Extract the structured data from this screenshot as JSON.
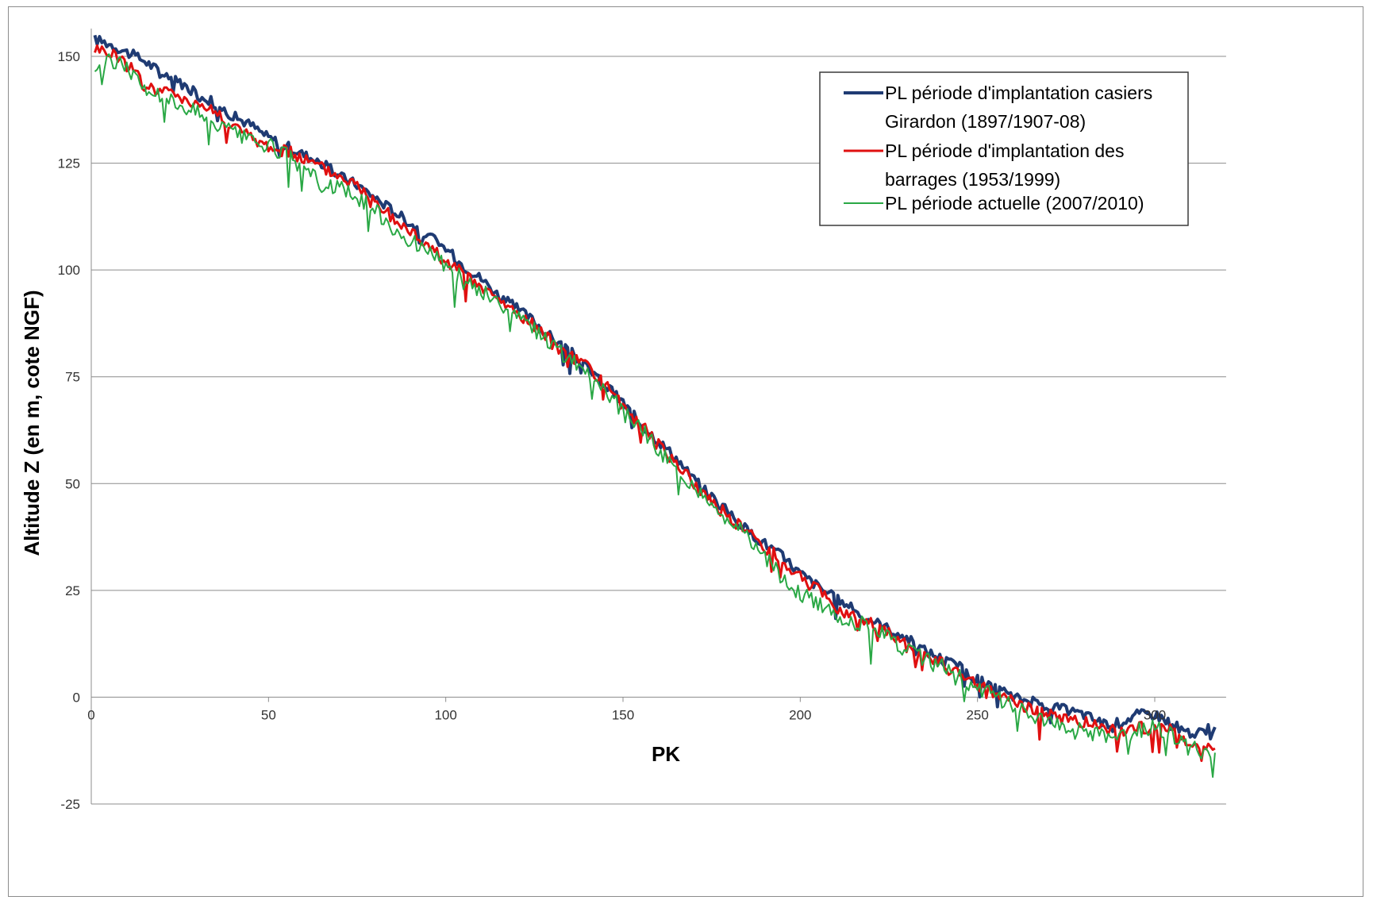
{
  "chart_data": {
    "type": "line",
    "title": "",
    "xlabel": "PK",
    "ylabel": "Altitude Z (en m, cote NGF)",
    "xlim": [
      0,
      317
    ],
    "ylim": [
      -25,
      155
    ],
    "x_ticks": [
      0,
      50,
      100,
      150,
      200,
      250,
      300
    ],
    "y_ticks": [
      150,
      125,
      100,
      75,
      50,
      25,
      0,
      -25
    ],
    "grid": "horizontal",
    "legend_position": "top-right",
    "series": [
      {
        "name": "PL période d'implantation casiers Girardon (1897/1907-08)",
        "color": "#1f3b73",
        "x": [
          1,
          5,
          10,
          15,
          20,
          25,
          30,
          35,
          40,
          45,
          50,
          55,
          60,
          65,
          70,
          75,
          80,
          85,
          90,
          95,
          100,
          105,
          110,
          115,
          120,
          125,
          130,
          135,
          140,
          145,
          150,
          155,
          160,
          165,
          170,
          175,
          180,
          185,
          190,
          195,
          200,
          205,
          210,
          218,
          225,
          230,
          235,
          240,
          245,
          250,
          255,
          260,
          265,
          270,
          275,
          280,
          285,
          290,
          295,
          300,
          305,
          310,
          317
        ],
        "y": [
          154,
          153,
          151,
          149,
          146,
          144,
          141,
          139,
          136,
          134,
          131,
          129,
          127,
          125,
          122,
          120,
          117,
          114,
          111,
          108,
          105,
          101,
          98,
          94,
          91,
          88,
          84,
          81,
          77,
          73,
          69,
          64,
          60,
          56,
          51,
          47,
          43,
          39,
          36,
          33,
          29,
          26,
          23,
          19,
          16,
          14,
          11,
          9,
          7,
          4,
          2,
          0,
          -1,
          -2,
          -3,
          -4,
          -6,
          -6,
          -4,
          -4,
          -6,
          -9,
          -7
        ]
      },
      {
        "name": "PL période d'implantation des barrages (1953/1999)",
        "color": "#e01010",
        "x": [
          1,
          5,
          10,
          15,
          20,
          25,
          30,
          35,
          40,
          45,
          50,
          55,
          60,
          65,
          70,
          75,
          80,
          85,
          90,
          95,
          100,
          105,
          110,
          115,
          120,
          125,
          130,
          135,
          140,
          145,
          150,
          155,
          160,
          165,
          170,
          175,
          180,
          185,
          190,
          195,
          200,
          205,
          210,
          218,
          225,
          230,
          235,
          240,
          245,
          250,
          255,
          260,
          265,
          270,
          275,
          280,
          285,
          290,
          295,
          300,
          305,
          310,
          317
        ],
        "y": [
          152,
          151,
          149,
          143,
          142,
          141,
          139,
          137,
          134,
          131,
          129,
          128,
          126,
          124,
          122,
          120,
          116,
          112,
          109,
          106,
          102,
          99,
          96,
          93,
          90,
          87,
          83,
          80,
          77,
          73,
          68,
          64,
          59,
          55,
          50,
          46,
          42,
          39,
          35,
          32,
          28,
          25,
          21,
          18,
          15,
          12,
          10,
          8,
          5,
          3,
          1,
          -1,
          -3,
          -4,
          -5,
          -6,
          -7,
          -8,
          -7,
          -7,
          -8,
          -11,
          -12
        ]
      },
      {
        "name": "PL période actuelle (2007/2010)",
        "color": "#2aa845",
        "x": [
          1,
          5,
          10,
          15,
          20,
          25,
          30,
          35,
          40,
          45,
          50,
          55,
          60,
          65,
          70,
          75,
          80,
          85,
          90,
          95,
          100,
          105,
          110,
          115,
          120,
          125,
          130,
          135,
          140,
          145,
          150,
          155,
          160,
          165,
          170,
          175,
          180,
          185,
          190,
          195,
          200,
          205,
          210,
          218,
          225,
          230,
          235,
          240,
          245,
          250,
          255,
          260,
          265,
          270,
          275,
          280,
          285,
          290,
          295,
          300,
          305,
          310,
          317
        ],
        "y": [
          147,
          149,
          148,
          142,
          141,
          139,
          137,
          134,
          132,
          130,
          129,
          127,
          124,
          120,
          119,
          117,
          114,
          110,
          107,
          104,
          101,
          98,
          95,
          92,
          89,
          86,
          82,
          79,
          76,
          72,
          67,
          63,
          58,
          54,
          49,
          45,
          41,
          38,
          33,
          28,
          24,
          22,
          19,
          17,
          14,
          11,
          9,
          7,
          5,
          2,
          0,
          -2,
          -4,
          -6,
          -7,
          -8,
          -9,
          -10,
          -8,
          -7,
          -9,
          -12,
          -13
        ]
      }
    ]
  }
}
